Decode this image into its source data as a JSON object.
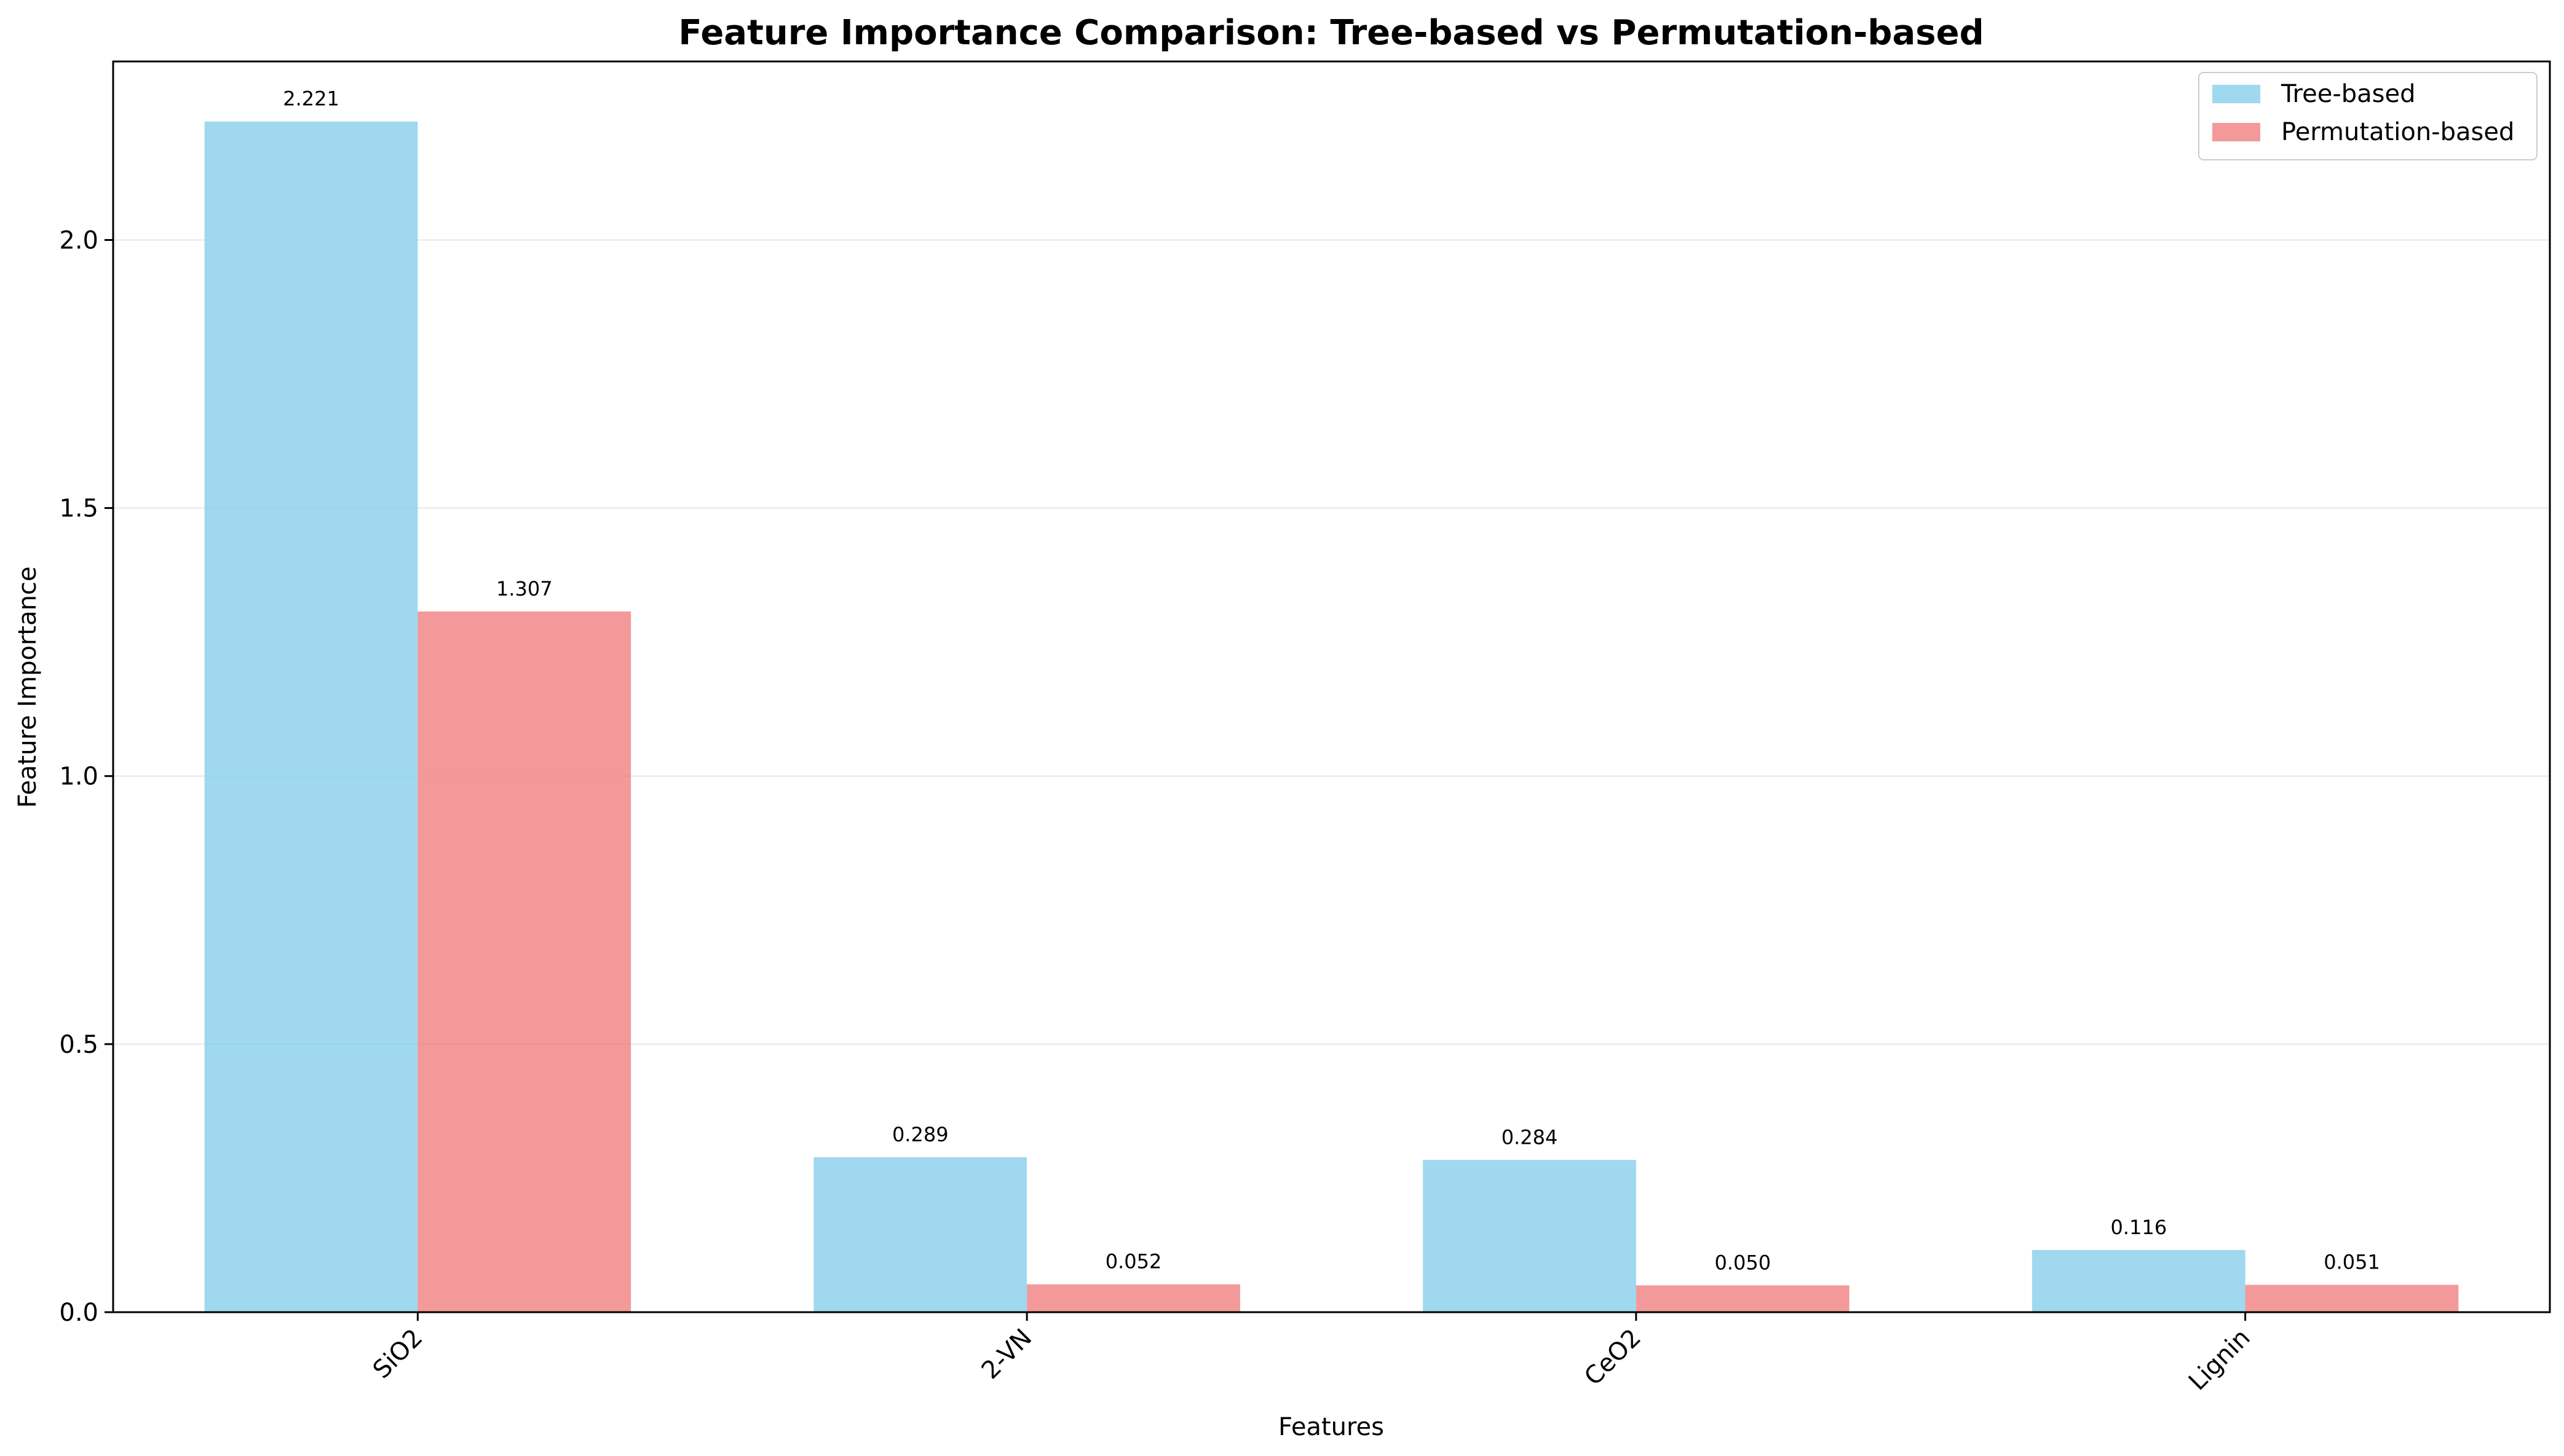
{
  "chart_data": {
    "type": "bar",
    "title": "Feature Importance Comparison: Tree-based vs Permutation-based",
    "xlabel": "Features",
    "ylabel": "Feature Importance",
    "categories": [
      "SiO2",
      "2-VN",
      "CeO2",
      "Lignin"
    ],
    "series": [
      {
        "name": "Tree-based",
        "values": [
          2.221,
          0.289,
          0.284,
          0.116
        ],
        "labels": [
          "2.221",
          "0.289",
          "0.284",
          "0.116"
        ],
        "color": "#87ceeb"
      },
      {
        "name": "Permutation-based",
        "values": [
          1.307,
          0.052,
          0.05,
          0.051
        ],
        "labels": [
          "1.307",
          "0.052",
          "0.050",
          "0.051"
        ],
        "color": "#f08080"
      }
    ],
    "ylim": [
      0,
      2.333
    ],
    "yticks": [
      0.0,
      0.5,
      1.0,
      1.5,
      2.0
    ],
    "ytick_labels": [
      "0.0",
      "0.5",
      "1.0",
      "1.5",
      "2.0"
    ],
    "grid": "y",
    "legend": "top-right"
  }
}
